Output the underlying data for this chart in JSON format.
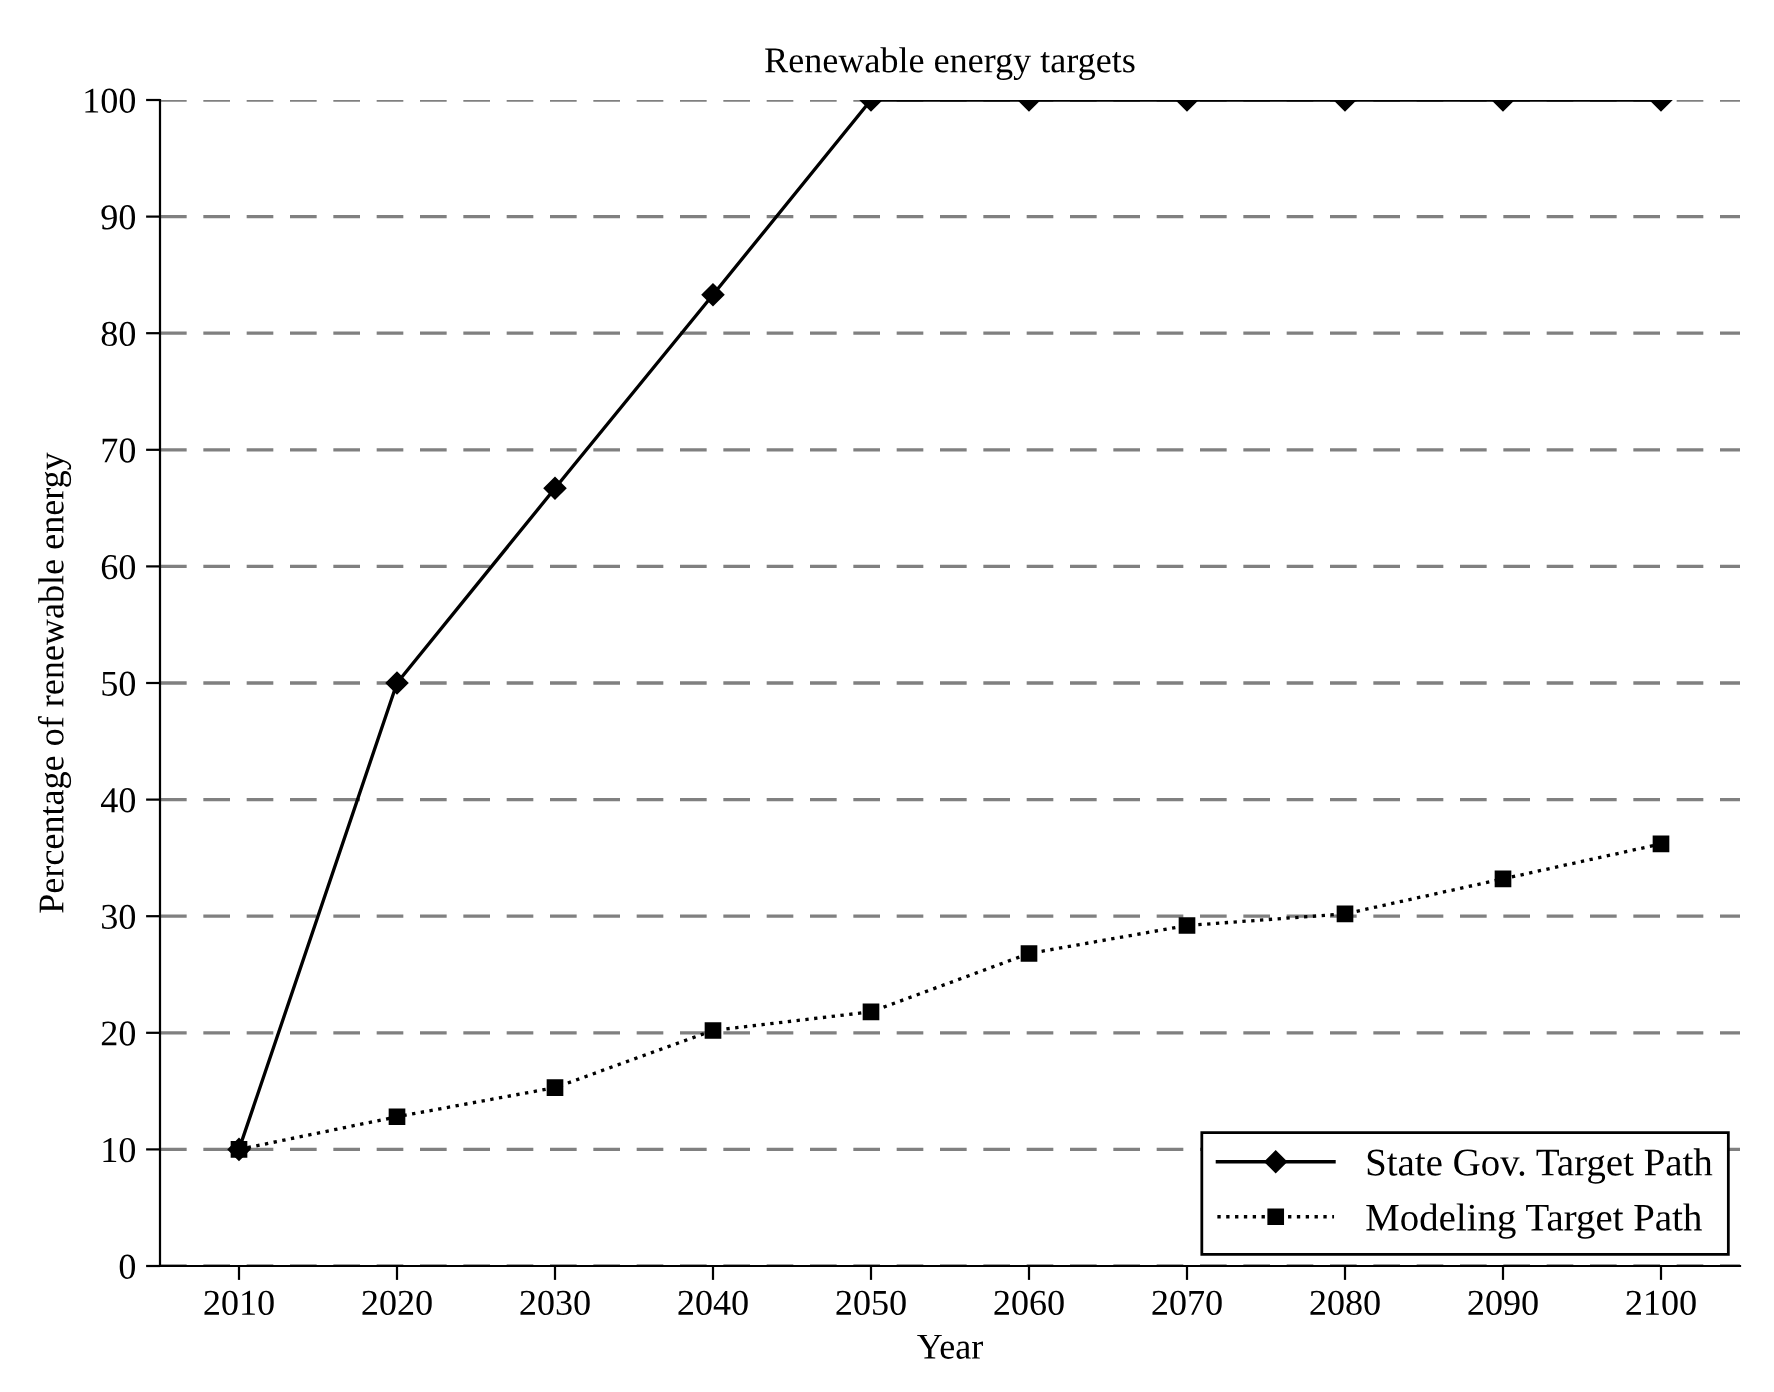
{
  "chart_data": {
    "type": "line",
    "title": "Renewable energy targets",
    "xlabel": "Year",
    "ylabel": "Percentage of renewable energy",
    "categories": [
      "2010",
      "2020",
      "2030",
      "2040",
      "2050",
      "2060",
      "2070",
      "2080",
      "2090",
      "2100"
    ],
    "series": [
      {
        "name": "State Gov. Target Path",
        "color": "#000000",
        "marker": "diamond",
        "line_style": "solid",
        "values": [
          10,
          50,
          66.7,
          83.3,
          100,
          100,
          100,
          100,
          100,
          100
        ]
      },
      {
        "name": "Modeling Target Path",
        "color": "#000000",
        "marker": "square",
        "line_style": "dotted",
        "values": [
          10,
          12.8,
          15.3,
          20.2,
          21.8,
          26.8,
          29.2,
          30.2,
          33.2,
          36.2
        ]
      }
    ],
    "ylim": [
      0,
      100
    ],
    "yticks": [
      0,
      10,
      20,
      30,
      40,
      50,
      60,
      70,
      80,
      90,
      100
    ],
    "grid": "y",
    "legend": "bottom right"
  }
}
